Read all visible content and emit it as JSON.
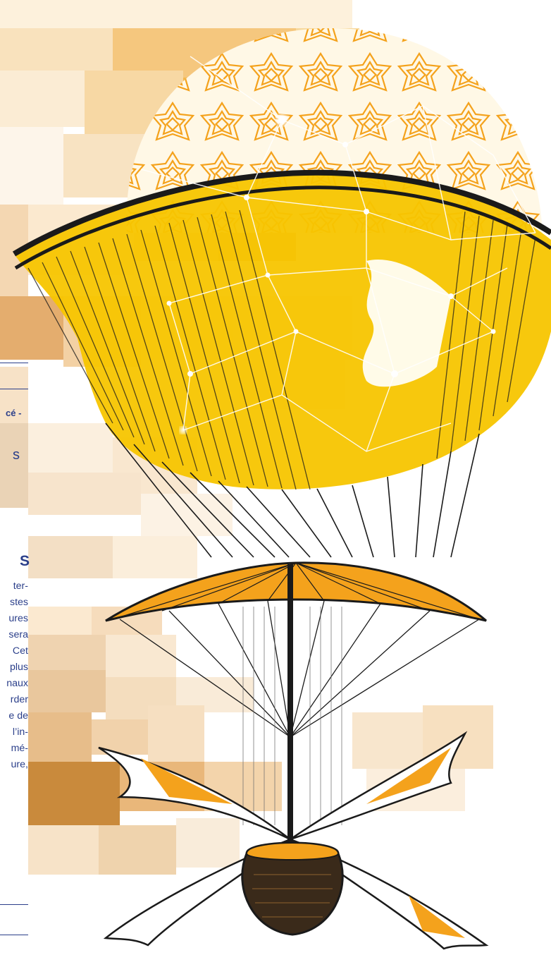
{
  "fragments": {
    "line1": "cé -",
    "line2": "s",
    "heading": "S",
    "body_lines": [
      "ter-",
      "stes",
      "ures",
      "sera",
      "Cet",
      "plus",
      "naux",
      "rder",
      "e de",
      "l’in-",
      "mé-",
      "ure,"
    ]
  },
  "colors": {
    "text_blue": "#2b3f8a",
    "balloon_yellow": "#f7c500",
    "accent_orange": "#f4a21c",
    "ink": "#1a1a1a"
  },
  "illustration": {
    "subject": "vintage-airship-balloon-engraving",
    "overlay": "geometric-star-pattern-and-network-lines"
  }
}
